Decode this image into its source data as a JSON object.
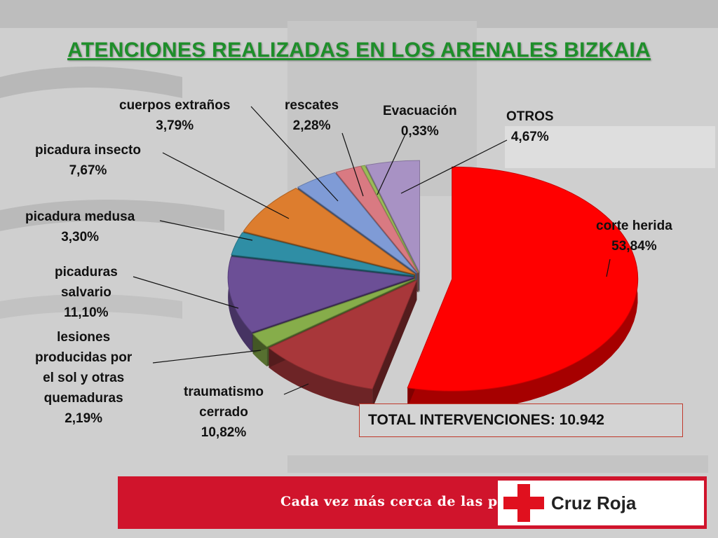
{
  "title": "ATENCIONES REALIZADAS EN LOS ARENALES BIZKAIA",
  "chart_data": {
    "type": "pie",
    "title": "ATENCIONES REALIZADAS EN LOS ARENALES BIZKAIA",
    "labels": [
      "corte herida",
      "traumatismo cerrado",
      "lesiones producidas por el sol y otras quemaduras",
      "picaduras salvario",
      "picadura medusa",
      "picadura insecto",
      "cuerpos extraños",
      "rescates",
      "Evacuación",
      "OTROS"
    ],
    "values": [
      53.84,
      10.82,
      2.19,
      11.1,
      3.3,
      7.67,
      3.79,
      2.28,
      0.33,
      4.67
    ],
    "value_labels": [
      "53,84%",
      "10,82%",
      "2,19%",
      "11,10%",
      "3,30%",
      "7,67%",
      "3,79%",
      "2,28%",
      "0,33%",
      "4,67%"
    ],
    "colors": [
      "#ff0000",
      "#a8373a",
      "#86ad4a",
      "#6c4f96",
      "#2f8ea5",
      "#dd7d2e",
      "#7f9bd6",
      "#d97a82",
      "#9bbb59",
      "#a892c4"
    ],
    "exploded": true,
    "style": "3d"
  },
  "labels": {
    "corte_herida": [
      "corte herida",
      "53,84%"
    ],
    "traumatismo": [
      "traumatismo",
      "cerrado",
      "10,82%"
    ],
    "lesiones": [
      "lesiones",
      "producidas por",
      "el sol y otras",
      "quemaduras",
      "2,19%"
    ],
    "salvario": [
      "picaduras",
      "salvario",
      "11,10%"
    ],
    "medusa": [
      "picadura medusa",
      "3,30%"
    ],
    "insecto": [
      "picadura insecto",
      "7,67%"
    ],
    "cuerpos": [
      "cuerpos extraños",
      "3,79%"
    ],
    "rescates": [
      "rescates",
      "2,28%"
    ],
    "evacuacion": [
      "Evacuación",
      "0,33%"
    ],
    "otros": [
      "OTROS",
      "4,67%"
    ]
  },
  "total": "TOTAL INTERVENCIONES: 10.942",
  "footer": {
    "slogan": "Cada vez más cerca de las personas",
    "logo_text": "Cruz Roja",
    "brand_color": "#d0142c"
  }
}
